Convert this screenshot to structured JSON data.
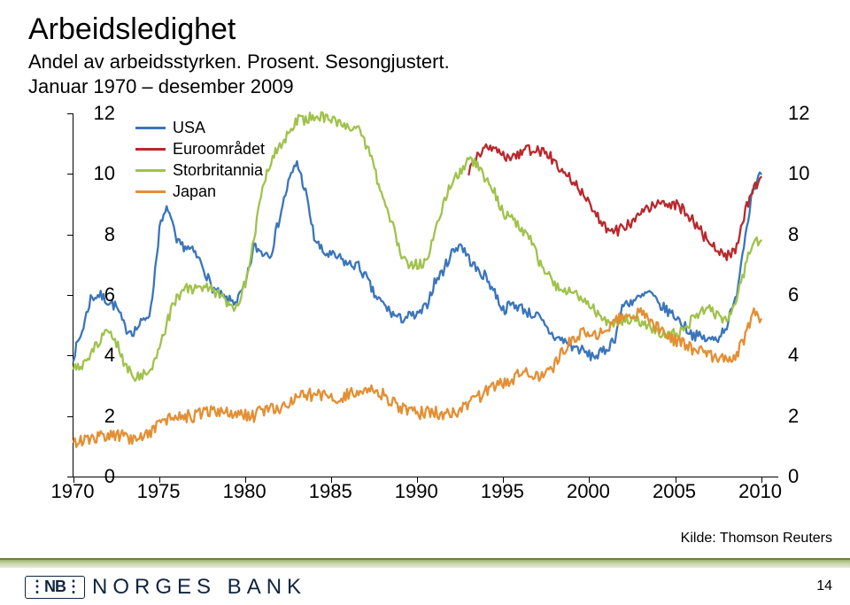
{
  "title": "Arbeidsledighet",
  "subtitle_line1": "Andel av arbeidsstyrken. Prosent. Sesongjustert.",
  "subtitle_line2": "Januar 1970 – desember 2009",
  "chart": {
    "type": "line",
    "x_min": 1970,
    "x_max": 2011,
    "y_min": 0,
    "y_max": 12,
    "y_ticks": [
      0,
      2,
      4,
      6,
      8,
      10,
      12
    ],
    "y_ticks_right": [
      0,
      2,
      4,
      6,
      8,
      10,
      12
    ],
    "x_ticks": [
      1970,
      1975,
      1980,
      1985,
      1990,
      1995,
      2000,
      2005,
      2010
    ],
    "line_width": 2.3,
    "background_color": "#ffffff",
    "axis_color": "#000000",
    "tick_fontsize": 22,
    "legend_fontsize": 18,
    "legend_position": "top-left-inside",
    "series": [
      {
        "name": "USA",
        "color": "#3a75ba",
        "points": [
          [
            1970.0,
            4.0
          ],
          [
            1970.5,
            4.8
          ],
          [
            1971.0,
            5.9
          ],
          [
            1971.5,
            6.0
          ],
          [
            1972.0,
            5.8
          ],
          [
            1972.5,
            5.6
          ],
          [
            1973.0,
            4.9
          ],
          [
            1973.5,
            4.8
          ],
          [
            1974.0,
            5.1
          ],
          [
            1974.5,
            5.5
          ],
          [
            1975.0,
            8.2
          ],
          [
            1975.5,
            8.9
          ],
          [
            1976.0,
            7.7
          ],
          [
            1976.5,
            7.6
          ],
          [
            1977.0,
            7.4
          ],
          [
            1977.5,
            7.0
          ],
          [
            1978.0,
            6.3
          ],
          [
            1978.5,
            6.0
          ],
          [
            1979.0,
            5.8
          ],
          [
            1979.5,
            5.8
          ],
          [
            1980.0,
            6.3
          ],
          [
            1980.5,
            7.6
          ],
          [
            1981.0,
            7.4
          ],
          [
            1981.5,
            7.4
          ],
          [
            1982.0,
            8.6
          ],
          [
            1982.5,
            9.7
          ],
          [
            1983.0,
            10.4
          ],
          [
            1983.5,
            9.4
          ],
          [
            1984.0,
            7.9
          ],
          [
            1984.5,
            7.4
          ],
          [
            1985.0,
            7.3
          ],
          [
            1985.5,
            7.2
          ],
          [
            1986.0,
            7.0
          ],
          [
            1986.5,
            7.0
          ],
          [
            1987.0,
            6.6
          ],
          [
            1987.5,
            6.0
          ],
          [
            1988.0,
            5.7
          ],
          [
            1988.5,
            5.4
          ],
          [
            1989.0,
            5.2
          ],
          [
            1989.5,
            5.3
          ],
          [
            1990.0,
            5.3
          ],
          [
            1990.5,
            5.6
          ],
          [
            1991.0,
            6.4
          ],
          [
            1991.5,
            6.8
          ],
          [
            1992.0,
            7.4
          ],
          [
            1992.5,
            7.7
          ],
          [
            1993.0,
            7.2
          ],
          [
            1993.5,
            6.8
          ],
          [
            1994.0,
            6.6
          ],
          [
            1994.5,
            6.1
          ],
          [
            1995.0,
            5.5
          ],
          [
            1995.5,
            5.7
          ],
          [
            1996.0,
            5.6
          ],
          [
            1996.5,
            5.4
          ],
          [
            1997.0,
            5.3
          ],
          [
            1997.5,
            4.9
          ],
          [
            1998.0,
            4.6
          ],
          [
            1998.5,
            4.5
          ],
          [
            1999.0,
            4.3
          ],
          [
            1999.5,
            4.2
          ],
          [
            2000.0,
            4.0
          ],
          [
            2000.5,
            4.0
          ],
          [
            2001.0,
            4.2
          ],
          [
            2001.5,
            4.6
          ],
          [
            2002.0,
            5.7
          ],
          [
            2002.5,
            5.8
          ],
          [
            2003.0,
            5.9
          ],
          [
            2003.5,
            6.1
          ],
          [
            2004.0,
            5.7
          ],
          [
            2004.5,
            5.5
          ],
          [
            2005.0,
            5.3
          ],
          [
            2005.5,
            5.0
          ],
          [
            2006.0,
            4.7
          ],
          [
            2006.5,
            4.6
          ],
          [
            2007.0,
            4.5
          ],
          [
            2007.5,
            4.6
          ],
          [
            2008.0,
            5.0
          ],
          [
            2008.5,
            5.8
          ],
          [
            2009.0,
            7.7
          ],
          [
            2009.5,
            9.5
          ],
          [
            2010.0,
            10.0
          ]
        ]
      },
      {
        "name": "Euroområdet",
        "color": "#b9282c",
        "x_start": 1993.0,
        "points": [
          [
            1993.0,
            10.1
          ],
          [
            1993.5,
            10.6
          ],
          [
            1994.0,
            10.8
          ],
          [
            1994.5,
            10.9
          ],
          [
            1995.0,
            10.6
          ],
          [
            1995.5,
            10.5
          ],
          [
            1996.0,
            10.7
          ],
          [
            1996.5,
            10.8
          ],
          [
            1997.0,
            10.8
          ],
          [
            1997.5,
            10.7
          ],
          [
            1998.0,
            10.4
          ],
          [
            1998.5,
            10.1
          ],
          [
            1999.0,
            9.8
          ],
          [
            1999.5,
            9.4
          ],
          [
            2000.0,
            9.0
          ],
          [
            2000.5,
            8.6
          ],
          [
            2001.0,
            8.2
          ],
          [
            2001.5,
            8.1
          ],
          [
            2002.0,
            8.2
          ],
          [
            2002.5,
            8.4
          ],
          [
            2003.0,
            8.7
          ],
          [
            2003.5,
            8.9
          ],
          [
            2004.0,
            9.0
          ],
          [
            2004.5,
            9.0
          ],
          [
            2005.0,
            9.0
          ],
          [
            2005.5,
            8.8
          ],
          [
            2006.0,
            8.5
          ],
          [
            2006.5,
            8.1
          ],
          [
            2007.0,
            7.7
          ],
          [
            2007.5,
            7.4
          ],
          [
            2008.0,
            7.3
          ],
          [
            2008.5,
            7.5
          ],
          [
            2009.0,
            8.6
          ],
          [
            2009.5,
            9.5
          ],
          [
            2010.0,
            9.9
          ]
        ]
      },
      {
        "name": "Storbritannia",
        "color": "#a0c24b",
        "points": [
          [
            1970.0,
            3.6
          ],
          [
            1970.5,
            3.6
          ],
          [
            1971.0,
            4.1
          ],
          [
            1971.5,
            4.5
          ],
          [
            1972.0,
            4.8
          ],
          [
            1972.5,
            4.4
          ],
          [
            1973.0,
            3.7
          ],
          [
            1973.5,
            3.3
          ],
          [
            1974.0,
            3.4
          ],
          [
            1974.5,
            3.5
          ],
          [
            1975.0,
            4.2
          ],
          [
            1975.5,
            5.2
          ],
          [
            1976.0,
            5.9
          ],
          [
            1976.5,
            6.2
          ],
          [
            1977.0,
            6.2
          ],
          [
            1977.5,
            6.3
          ],
          [
            1978.0,
            6.2
          ],
          [
            1978.5,
            6.0
          ],
          [
            1979.0,
            5.7
          ],
          [
            1979.5,
            5.6
          ],
          [
            1980.0,
            6.4
          ],
          [
            1980.5,
            7.9
          ],
          [
            1981.0,
            9.6
          ],
          [
            1981.5,
            10.5
          ],
          [
            1982.0,
            10.9
          ],
          [
            1982.5,
            11.3
          ],
          [
            1983.0,
            11.8
          ],
          [
            1983.5,
            11.8
          ],
          [
            1984.0,
            11.9
          ],
          [
            1984.5,
            11.9
          ],
          [
            1985.0,
            11.8
          ],
          [
            1985.5,
            11.6
          ],
          [
            1986.0,
            11.6
          ],
          [
            1986.5,
            11.5
          ],
          [
            1987.0,
            11.0
          ],
          [
            1987.5,
            10.2
          ],
          [
            1988.0,
            9.1
          ],
          [
            1988.5,
            8.4
          ],
          [
            1989.0,
            7.4
          ],
          [
            1989.5,
            7.0
          ],
          [
            1990.0,
            7.0
          ],
          [
            1990.5,
            7.1
          ],
          [
            1991.0,
            8.1
          ],
          [
            1991.5,
            9.0
          ],
          [
            1992.0,
            9.7
          ],
          [
            1992.5,
            10.1
          ],
          [
            1993.0,
            10.4
          ],
          [
            1993.5,
            10.3
          ],
          [
            1994.0,
            9.8
          ],
          [
            1994.5,
            9.4
          ],
          [
            1995.0,
            8.7
          ],
          [
            1995.5,
            8.5
          ],
          [
            1996.0,
            8.2
          ],
          [
            1996.5,
            8.0
          ],
          [
            1997.0,
            7.2
          ],
          [
            1997.5,
            6.8
          ],
          [
            1998.0,
            6.3
          ],
          [
            1998.5,
            6.2
          ],
          [
            1999.0,
            6.1
          ],
          [
            1999.5,
            5.9
          ],
          [
            2000.0,
            5.7
          ],
          [
            2000.5,
            5.4
          ],
          [
            2001.0,
            5.1
          ],
          [
            2001.5,
            5.1
          ],
          [
            2002.0,
            5.2
          ],
          [
            2002.5,
            5.2
          ],
          [
            2003.0,
            5.1
          ],
          [
            2003.5,
            5.0
          ],
          [
            2004.0,
            4.8
          ],
          [
            2004.5,
            4.7
          ],
          [
            2005.0,
            4.7
          ],
          [
            2005.5,
            4.8
          ],
          [
            2006.0,
            5.2
          ],
          [
            2006.5,
            5.5
          ],
          [
            2007.0,
            5.5
          ],
          [
            2007.5,
            5.3
          ],
          [
            2008.0,
            5.2
          ],
          [
            2008.5,
            5.7
          ],
          [
            2009.0,
            6.7
          ],
          [
            2009.5,
            7.8
          ],
          [
            2010.0,
            7.8
          ]
        ]
      },
      {
        "name": "Japan",
        "color": "#e38f34",
        "points": [
          [
            1970.0,
            1.1
          ],
          [
            1970.5,
            1.2
          ],
          [
            1971.0,
            1.2
          ],
          [
            1971.5,
            1.3
          ],
          [
            1972.0,
            1.4
          ],
          [
            1972.5,
            1.4
          ],
          [
            1973.0,
            1.3
          ],
          [
            1973.5,
            1.2
          ],
          [
            1974.0,
            1.3
          ],
          [
            1974.5,
            1.5
          ],
          [
            1975.0,
            1.8
          ],
          [
            1975.5,
            1.9
          ],
          [
            1976.0,
            2.0
          ],
          [
            1976.5,
            2.0
          ],
          [
            1977.0,
            2.0
          ],
          [
            1977.5,
            2.1
          ],
          [
            1978.0,
            2.2
          ],
          [
            1978.5,
            2.2
          ],
          [
            1979.0,
            2.1
          ],
          [
            1979.5,
            2.1
          ],
          [
            1980.0,
            2.0
          ],
          [
            1980.5,
            2.0
          ],
          [
            1981.0,
            2.2
          ],
          [
            1981.5,
            2.2
          ],
          [
            1982.0,
            2.3
          ],
          [
            1982.5,
            2.4
          ],
          [
            1983.0,
            2.6
          ],
          [
            1983.5,
            2.7
          ],
          [
            1984.0,
            2.7
          ],
          [
            1984.5,
            2.7
          ],
          [
            1985.0,
            2.6
          ],
          [
            1985.5,
            2.6
          ],
          [
            1986.0,
            2.7
          ],
          [
            1986.5,
            2.8
          ],
          [
            1987.0,
            2.9
          ],
          [
            1987.5,
            2.8
          ],
          [
            1988.0,
            2.7
          ],
          [
            1988.5,
            2.5
          ],
          [
            1989.0,
            2.3
          ],
          [
            1989.5,
            2.2
          ],
          [
            1990.0,
            2.1
          ],
          [
            1990.5,
            2.1
          ],
          [
            1991.0,
            2.1
          ],
          [
            1991.5,
            2.1
          ],
          [
            1992.0,
            2.1
          ],
          [
            1992.5,
            2.2
          ],
          [
            1993.0,
            2.4
          ],
          [
            1993.5,
            2.6
          ],
          [
            1994.0,
            2.8
          ],
          [
            1994.5,
            3.0
          ],
          [
            1995.0,
            3.1
          ],
          [
            1995.5,
            3.2
          ],
          [
            1996.0,
            3.4
          ],
          [
            1996.5,
            3.4
          ],
          [
            1997.0,
            3.3
          ],
          [
            1997.5,
            3.4
          ],
          [
            1998.0,
            3.7
          ],
          [
            1998.5,
            4.2
          ],
          [
            1999.0,
            4.6
          ],
          [
            1999.5,
            4.7
          ],
          [
            2000.0,
            4.8
          ],
          [
            2000.5,
            4.7
          ],
          [
            2001.0,
            4.8
          ],
          [
            2001.5,
            5.1
          ],
          [
            2002.0,
            5.3
          ],
          [
            2002.5,
            5.4
          ],
          [
            2003.0,
            5.4
          ],
          [
            2003.5,
            5.2
          ],
          [
            2004.0,
            4.9
          ],
          [
            2004.5,
            4.7
          ],
          [
            2005.0,
            4.5
          ],
          [
            2005.5,
            4.4
          ],
          [
            2006.0,
            4.2
          ],
          [
            2006.5,
            4.1
          ],
          [
            2007.0,
            4.0
          ],
          [
            2007.5,
            3.8
          ],
          [
            2008.0,
            3.9
          ],
          [
            2008.5,
            4.0
          ],
          [
            2009.0,
            4.5
          ],
          [
            2009.5,
            5.4
          ],
          [
            2010.0,
            5.2
          ]
        ]
      }
    ]
  },
  "source_label": "Kilde: Thomson Reuters",
  "page_number": "14",
  "logo": {
    "mark": "⋮NB⋮",
    "text": "NORGES BANK"
  }
}
